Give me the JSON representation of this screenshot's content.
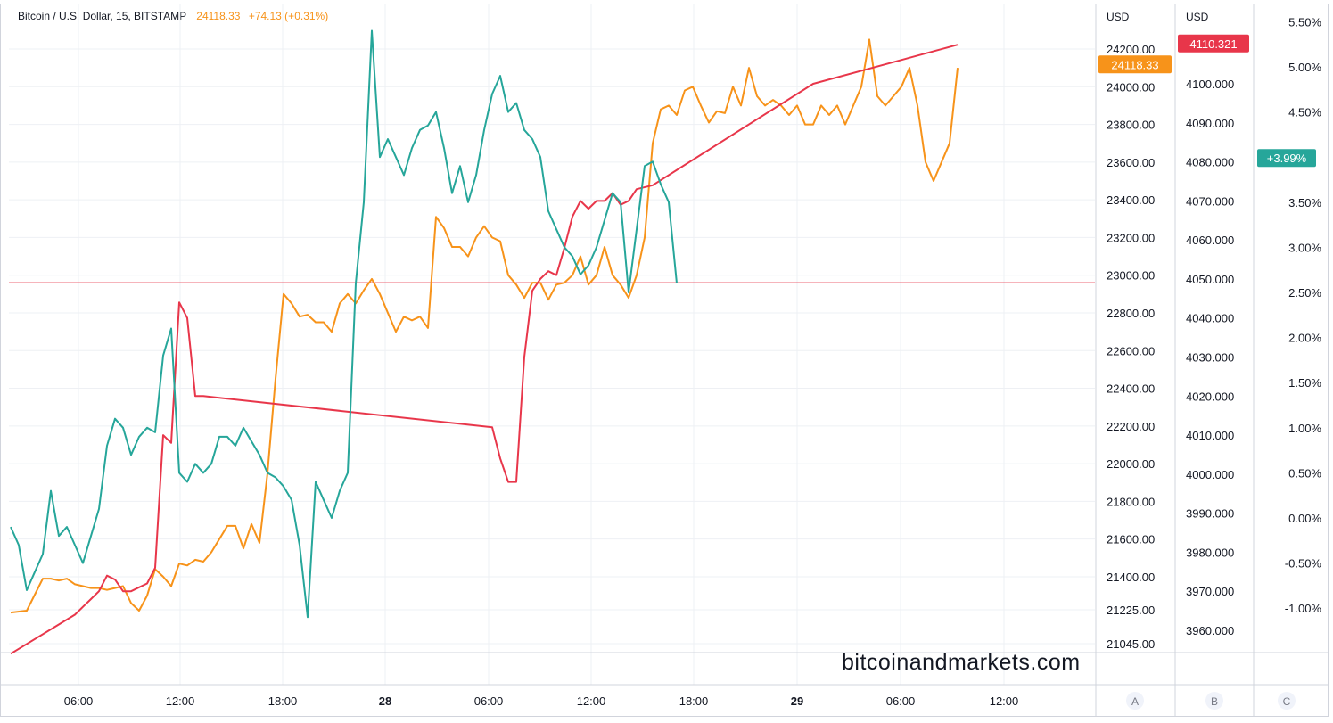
{
  "header": {
    "symbol": "Bitcoin / U.S. Dollar, 15, BITSTAMP",
    "price": "24118.33",
    "change": "+74.13 (+0.31%)"
  },
  "watermark": "bitcoinandmarkets.com",
  "colors": {
    "orange": "#f7931a",
    "red": "#e8364a",
    "teal": "#26a69a",
    "grid": "#eef0f4",
    "border": "#d1d4dc"
  },
  "chart_data": {
    "type": "line",
    "xlabel_ticks": [
      "06:00",
      "12:00",
      "18:00",
      "28",
      "06:00",
      "12:00",
      "18:00",
      "29",
      "06:00",
      "12:00"
    ],
    "axes": {
      "A": {
        "unit": "USD",
        "ticks": [
          "24200.00",
          "24000.00",
          "23800.00",
          "23600.00",
          "23400.00",
          "23200.00",
          "23000.00",
          "22800.00",
          "22600.00",
          "22400.00",
          "22200.00",
          "22000.00",
          "21800.00",
          "21600.00",
          "21400.00",
          "21225.00",
          "21045.00"
        ],
        "last_value": "24118.33",
        "footer": "A"
      },
      "B": {
        "unit": "USD",
        "ticks": [
          "4100.000",
          "4090.000",
          "4080.000",
          "4070.000",
          "4060.000",
          "4050.000",
          "4040.000",
          "4030.000",
          "4020.000",
          "4010.000",
          "4000.000",
          "3990.000",
          "3980.000",
          "3970.000",
          "3960.000"
        ],
        "last_value": "4110.321",
        "footer": "B"
      },
      "C": {
        "unit": "",
        "ticks": [
          "5.50%",
          "5.00%",
          "4.50%",
          "3.50%",
          "3.00%",
          "2.50%",
          "2.00%",
          "1.50%",
          "1.00%",
          "0.50%",
          "0.00%",
          "-0.50%",
          "-1.00%"
        ],
        "last_value": "+3.99%",
        "footer": "C"
      }
    },
    "reference_line": 22960,
    "series": [
      {
        "color": "#f7931a",
        "axis": "A",
        "points": [
          [
            0,
            21210
          ],
          [
            2,
            21220
          ],
          [
            4,
            21390
          ],
          [
            5,
            21390
          ],
          [
            6,
            21380
          ],
          [
            7,
            21390
          ],
          [
            8,
            21360
          ],
          [
            9,
            21350
          ],
          [
            10,
            21340
          ],
          [
            11,
            21340
          ],
          [
            12,
            21330
          ],
          [
            13,
            21340
          ],
          [
            14,
            21350
          ],
          [
            15,
            21260
          ],
          [
            16,
            21220
          ],
          [
            17,
            21300
          ],
          [
            18,
            21440
          ],
          [
            19,
            21400
          ],
          [
            20,
            21350
          ],
          [
            21,
            21470
          ],
          [
            22,
            21460
          ],
          [
            23,
            21490
          ],
          [
            24,
            21480
          ],
          [
            25,
            21530
          ],
          [
            26,
            21600
          ],
          [
            27,
            21670
          ],
          [
            28,
            21670
          ],
          [
            29,
            21550
          ],
          [
            30,
            21680
          ],
          [
            31,
            21580
          ],
          [
            32,
            21950
          ],
          [
            33,
            22450
          ],
          [
            34,
            22900
          ],
          [
            35,
            22850
          ],
          [
            36,
            22780
          ],
          [
            37,
            22790
          ],
          [
            38,
            22750
          ],
          [
            39,
            22750
          ],
          [
            40,
            22700
          ],
          [
            41,
            22850
          ],
          [
            42,
            22900
          ],
          [
            43,
            22850
          ],
          [
            44,
            22920
          ],
          [
            45,
            22980
          ],
          [
            46,
            22900
          ],
          [
            47,
            22800
          ],
          [
            48,
            22700
          ],
          [
            49,
            22780
          ],
          [
            50,
            22760
          ],
          [
            51,
            22780
          ],
          [
            52,
            22720
          ],
          [
            53,
            23310
          ],
          [
            54,
            23250
          ],
          [
            55,
            23150
          ],
          [
            56,
            23150
          ],
          [
            57,
            23100
          ],
          [
            58,
            23200
          ],
          [
            59,
            23260
          ],
          [
            60,
            23200
          ],
          [
            61,
            23180
          ],
          [
            62,
            23000
          ],
          [
            63,
            22950
          ],
          [
            64,
            22880
          ],
          [
            65,
            22960
          ],
          [
            66,
            22960
          ],
          [
            67,
            22870
          ],
          [
            68,
            22950
          ],
          [
            69,
            22960
          ],
          [
            70,
            23000
          ],
          [
            71,
            23100
          ],
          [
            72,
            22950
          ],
          [
            73,
            23000
          ],
          [
            74,
            23150
          ],
          [
            75,
            23000
          ],
          [
            76,
            22950
          ],
          [
            77,
            22880
          ],
          [
            78,
            23000
          ],
          [
            79,
            23200
          ],
          [
            80,
            23700
          ],
          [
            81,
            23880
          ],
          [
            82,
            23900
          ],
          [
            83,
            23850
          ],
          [
            84,
            23980
          ],
          [
            85,
            24000
          ],
          [
            86,
            23900
          ],
          [
            87,
            23810
          ],
          [
            88,
            23870
          ],
          [
            89,
            23860
          ],
          [
            90,
            24000
          ],
          [
            91,
            23900
          ],
          [
            92,
            24100
          ],
          [
            93,
            23950
          ],
          [
            94,
            23900
          ],
          [
            95,
            23930
          ],
          [
            96,
            23900
          ],
          [
            97,
            23850
          ],
          [
            98,
            23900
          ],
          [
            99,
            23800
          ],
          [
            100,
            23800
          ],
          [
            101,
            23900
          ],
          [
            102,
            23850
          ],
          [
            103,
            23900
          ],
          [
            104,
            23800
          ],
          [
            105,
            23900
          ],
          [
            106,
            24000
          ],
          [
            107,
            24250
          ],
          [
            108,
            23950
          ],
          [
            109,
            23900
          ],
          [
            110,
            23950
          ],
          [
            111,
            24000
          ],
          [
            112,
            24100
          ],
          [
            113,
            23900
          ],
          [
            114,
            23600
          ],
          [
            115,
            23500
          ],
          [
            116,
            23600
          ],
          [
            117,
            23700
          ],
          [
            118,
            24100
          ]
        ]
      },
      {
        "color": "#e8364a",
        "axis": "B",
        "points": [
          [
            0,
            3954
          ],
          [
            8,
            3964
          ],
          [
            9,
            3966
          ],
          [
            10,
            3968
          ],
          [
            11,
            3970
          ],
          [
            12,
            3974
          ],
          [
            13,
            3973
          ],
          [
            14,
            3970
          ],
          [
            15,
            3970
          ],
          [
            16,
            3971
          ],
          [
            17,
            3972
          ],
          [
            18,
            3976
          ],
          [
            19,
            4010
          ],
          [
            20,
            4008
          ],
          [
            21,
            4044
          ],
          [
            22,
            4040
          ],
          [
            23,
            4020
          ],
          [
            24,
            4020
          ],
          [
            60,
            4012
          ],
          [
            61,
            4004
          ],
          [
            62,
            3998
          ],
          [
            63,
            3998
          ],
          [
            64,
            4030
          ],
          [
            65,
            4047
          ],
          [
            66,
            4050
          ],
          [
            67,
            4052
          ],
          [
            68,
            4051
          ],
          [
            69,
            4058
          ],
          [
            70,
            4066
          ],
          [
            71,
            4070
          ],
          [
            72,
            4068
          ],
          [
            73,
            4070
          ],
          [
            74,
            4070
          ],
          [
            75,
            4072
          ],
          [
            76,
            4069
          ],
          [
            77,
            4070
          ],
          [
            78,
            4073
          ],
          [
            80,
            4074
          ],
          [
            100,
            4100
          ],
          [
            118,
            4110
          ]
        ]
      },
      {
        "color": "#26a69a",
        "axis": "C",
        "points": [
          [
            0,
            -0.1
          ],
          [
            1,
            -0.3
          ],
          [
            2,
            -0.8
          ],
          [
            3,
            -0.6
          ],
          [
            4,
            -0.4
          ],
          [
            5,
            0.3
          ],
          [
            6,
            -0.2
          ],
          [
            7,
            -0.1
          ],
          [
            8,
            -0.3
          ],
          [
            9,
            -0.5
          ],
          [
            10,
            -0.2
          ],
          [
            11,
            0.1
          ],
          [
            12,
            0.8
          ],
          [
            13,
            1.1
          ],
          [
            14,
            1.0
          ],
          [
            15,
            0.7
          ],
          [
            16,
            0.9
          ],
          [
            17,
            1.0
          ],
          [
            18,
            0.95
          ],
          [
            19,
            1.8
          ],
          [
            20,
            2.1
          ],
          [
            21,
            0.5
          ],
          [
            22,
            0.4
          ],
          [
            23,
            0.6
          ],
          [
            24,
            0.5
          ],
          [
            25,
            0.6
          ],
          [
            26,
            0.9
          ],
          [
            27,
            0.9
          ],
          [
            28,
            0.8
          ],
          [
            29,
            1.0
          ],
          [
            30,
            0.85
          ],
          [
            31,
            0.7
          ],
          [
            32,
            0.5
          ],
          [
            33,
            0.45
          ],
          [
            34,
            0.35
          ],
          [
            35,
            0.2
          ],
          [
            36,
            -0.3
          ],
          [
            37,
            -1.1
          ],
          [
            38,
            0.4
          ],
          [
            39,
            0.2
          ],
          [
            40,
            0.0
          ],
          [
            41,
            0.3
          ],
          [
            42,
            0.5
          ],
          [
            43,
            2.6
          ],
          [
            44,
            3.5
          ],
          [
            45,
            5.4
          ],
          [
            46,
            4.0
          ],
          [
            47,
            4.2
          ],
          [
            48,
            4.0
          ],
          [
            49,
            3.8
          ],
          [
            50,
            4.1
          ],
          [
            51,
            4.3
          ],
          [
            52,
            4.35
          ],
          [
            53,
            4.5
          ],
          [
            54,
            4.1
          ],
          [
            55,
            3.6
          ],
          [
            56,
            3.9
          ],
          [
            57,
            3.5
          ],
          [
            58,
            3.8
          ],
          [
            59,
            4.3
          ],
          [
            60,
            4.7
          ],
          [
            61,
            4.9
          ],
          [
            62,
            4.5
          ],
          [
            63,
            4.6
          ],
          [
            64,
            4.3
          ],
          [
            65,
            4.2
          ],
          [
            66,
            4.0
          ],
          [
            67,
            3.4
          ],
          [
            68,
            3.2
          ],
          [
            69,
            3.0
          ],
          [
            70,
            2.9
          ],
          [
            71,
            2.7
          ],
          [
            72,
            2.8
          ],
          [
            73,
            3.0
          ],
          [
            74,
            3.3
          ],
          [
            75,
            3.6
          ],
          [
            76,
            3.5
          ],
          [
            77,
            2.5
          ],
          [
            78,
            3.2
          ],
          [
            79,
            3.9
          ],
          [
            80,
            3.95
          ],
          [
            81,
            3.7
          ],
          [
            82,
            3.5
          ],
          [
            83,
            2.6
          ]
        ]
      }
    ]
  }
}
